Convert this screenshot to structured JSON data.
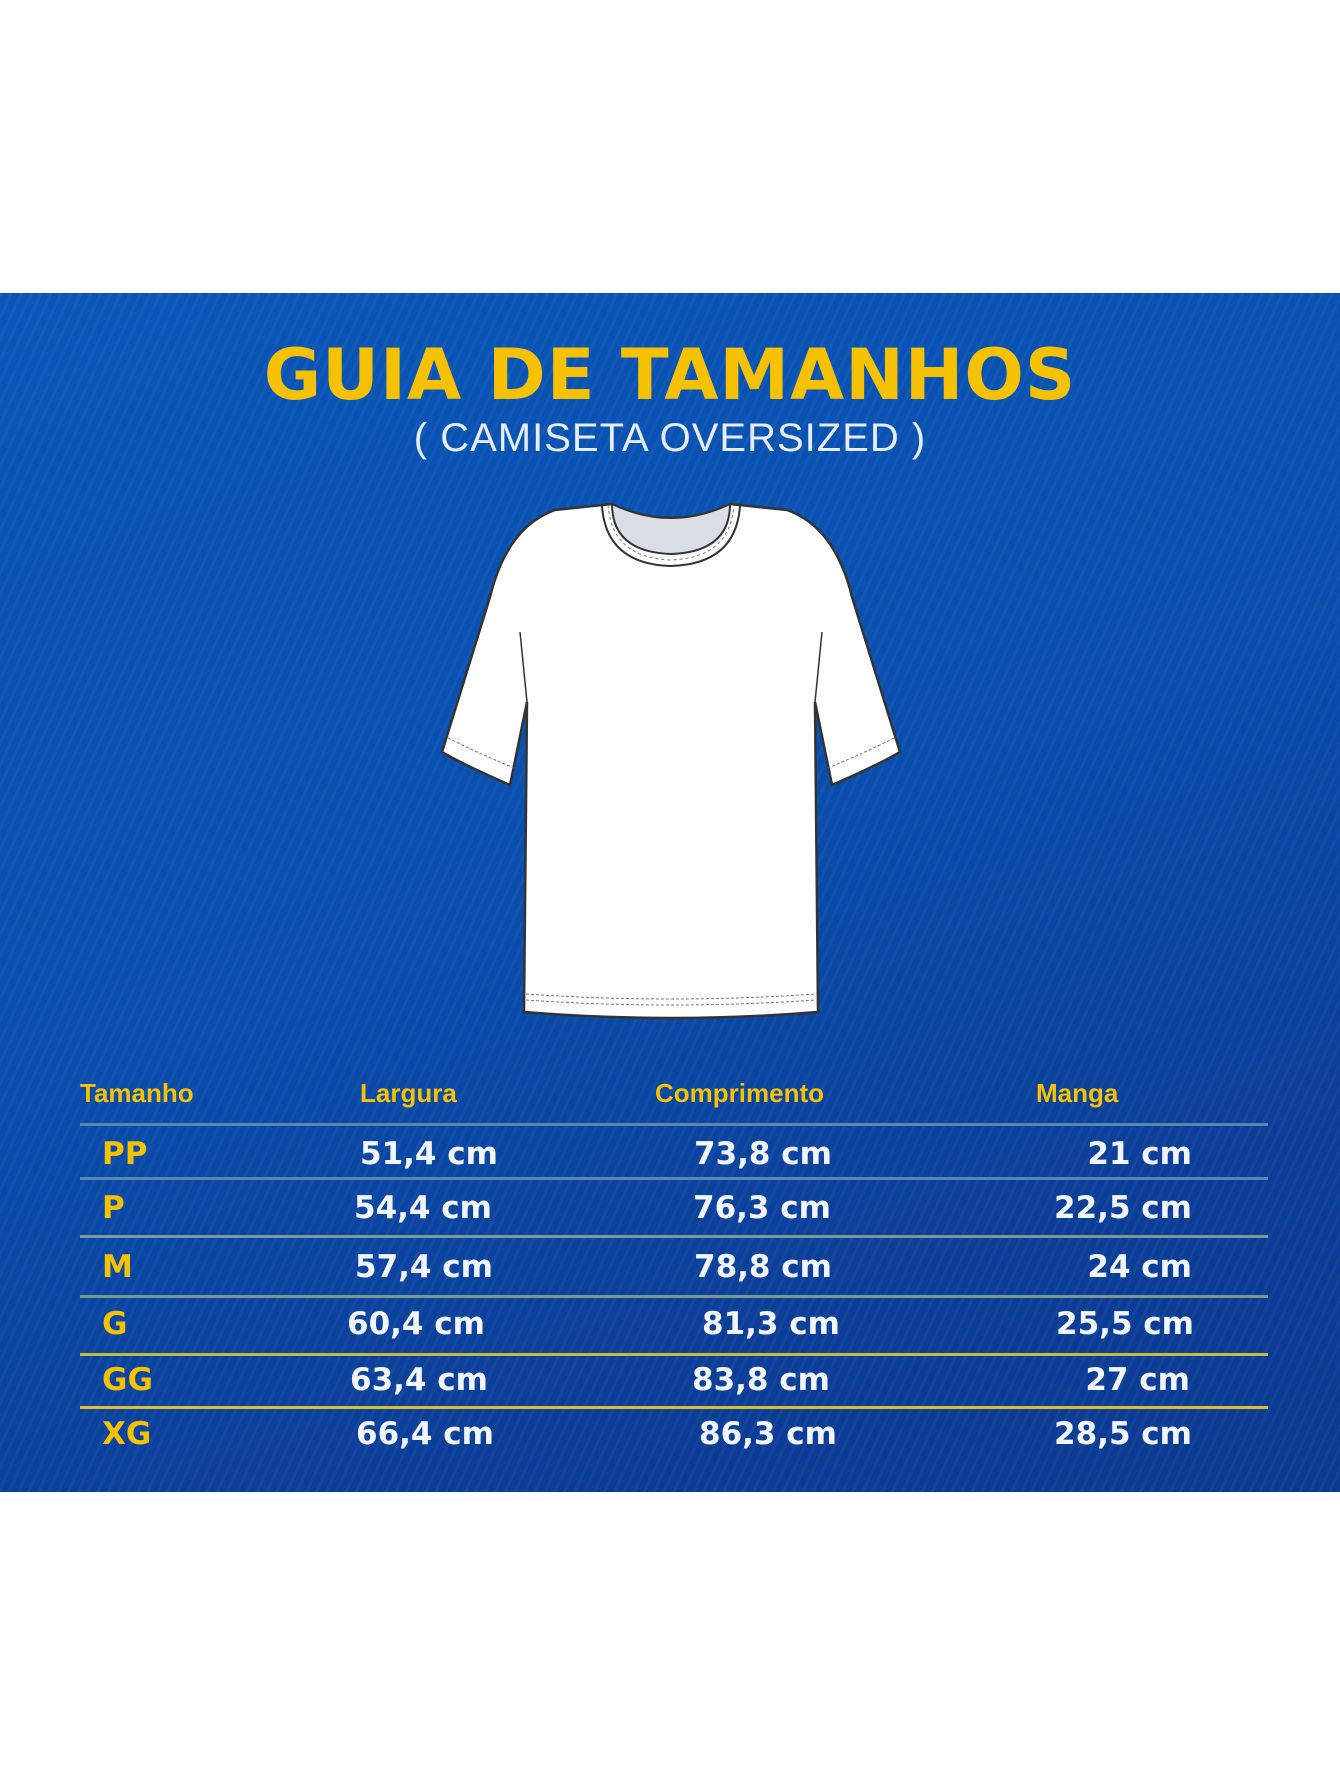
{
  "title": "GUIA DE TAMANHOS",
  "subtitle": "( CAMISETA OVERSIZED )",
  "colors": {
    "background": "#0a4fae",
    "accent": "#f6c200",
    "text": "#f2f5fb"
  },
  "image": "oversized-tshirt-illustration",
  "table": {
    "headers": [
      "Tamanho",
      "Largura",
      "Comprimento",
      "Manga"
    ],
    "rows": [
      [
        "PP",
        "51,4 cm",
        "73,8 cm",
        "21 cm"
      ],
      [
        "P",
        "54,4 cm",
        "76,3 cm",
        "22,5 cm"
      ],
      [
        "M",
        "57,4 cm",
        "78,8 cm",
        "24 cm"
      ],
      [
        "G",
        "60,4 cm",
        "81,3 cm",
        "25,5 cm"
      ],
      [
        "GG",
        "63,4 cm",
        "83,8 cm",
        "27 cm"
      ],
      [
        "XG",
        "66,4 cm",
        "86,3 cm",
        "28,5 cm"
      ]
    ]
  }
}
